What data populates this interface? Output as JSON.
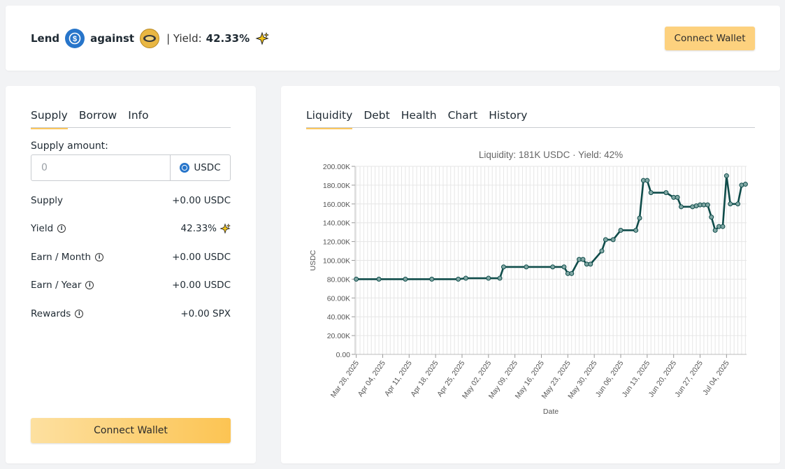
{
  "header": {
    "lend_label": "Lend",
    "against_label": "against",
    "yield_prefix": "| Yield:",
    "yield_value": "42.33%",
    "connect_wallet": "Connect Wallet",
    "coin_a_icon": "usdc-coin-icon",
    "coin_b_icon": "spx-coin-icon",
    "sparkle_icon": "sparkle-icon"
  },
  "left": {
    "tabs": [
      "Supply",
      "Borrow",
      "Info"
    ],
    "active_tab": "Supply",
    "supply_amount_label": "Supply amount:",
    "input_placeholder": "0",
    "input_value": "",
    "input_suffix": "USDC",
    "stats": [
      {
        "label": "Supply",
        "value": "+0.00 USDC",
        "info": false
      },
      {
        "label": "Yield",
        "value": "42.33%",
        "info": true
      },
      {
        "label": "Earn / Month",
        "value": "+0.00 USDC",
        "info": true
      },
      {
        "label": "Earn / Year",
        "value": "+0.00 USDC",
        "info": true
      },
      {
        "label": "Rewards",
        "value": "+0.00 SPX",
        "info": true
      }
    ],
    "connect_wallet": "Connect Wallet"
  },
  "right": {
    "tabs": [
      "Liquidity",
      "Debt",
      "Health",
      "Chart",
      "History"
    ],
    "active_tab": "Liquidity"
  },
  "colors": {
    "accent": "#fcc75e",
    "line": "#0f4c4a",
    "usdc": "#2775ca"
  },
  "chart_data": {
    "type": "line",
    "title": "Liquidity: 181K USDC · Yield: 42%",
    "xlabel": "Date",
    "ylabel": "USDC",
    "ylim": [
      0,
      200000
    ],
    "y_ticks": [
      "0.00",
      "20.00K",
      "40.00K",
      "60.00K",
      "80.00K",
      "100.00K",
      "120.00K",
      "140.00K",
      "160.00K",
      "180.00K",
      "200.00K"
    ],
    "x_ticks": [
      "Mar 28, 2025",
      "Apr 04, 2025",
      "Apr 11, 2025",
      "Apr 18, 2025",
      "Apr 25, 2025",
      "May 02, 2025",
      "May 09, 2025",
      "May 16, 2025",
      "May 23, 2025",
      "May 30, 2025",
      "Jun 06, 2025",
      "Jun 13, 2025",
      "Jun 20, 2025",
      "Jun 27, 2025",
      "Jul 04, 2025"
    ],
    "grid": true,
    "legend": "none",
    "series": [
      {
        "x": [
          "2025-03-28",
          "2025-04-03",
          "2025-04-10",
          "2025-04-17",
          "2025-04-24",
          "2025-04-26",
          "2025-05-02",
          "2025-05-05",
          "2025-05-06",
          "2025-05-12",
          "2025-05-19",
          "2025-05-22",
          "2025-05-23",
          "2025-05-24",
          "2025-05-26",
          "2025-05-27",
          "2025-05-28",
          "2025-05-29",
          "2025-06-01",
          "2025-06-02",
          "2025-06-04",
          "2025-06-06",
          "2025-06-10",
          "2025-06-11",
          "2025-06-12",
          "2025-06-13",
          "2025-06-14",
          "2025-06-18",
          "2025-06-20",
          "2025-06-21",
          "2025-06-22",
          "2025-06-25",
          "2025-06-26",
          "2025-06-27",
          "2025-06-28",
          "2025-06-29",
          "2025-06-30",
          "2025-07-01",
          "2025-07-02",
          "2025-07-03",
          "2025-07-04",
          "2025-07-05",
          "2025-07-07",
          "2025-07-08",
          "2025-07-09"
        ],
        "y": [
          80000,
          80000,
          80000,
          80000,
          80000,
          81000,
          81000,
          81000,
          93000,
          93000,
          93000,
          93000,
          86000,
          86000,
          101000,
          101000,
          96000,
          96000,
          110000,
          122000,
          122000,
          132000,
          132000,
          145000,
          185000,
          185000,
          172000,
          172000,
          167000,
          167000,
          157000,
          157000,
          158000,
          159000,
          159000,
          159000,
          146000,
          132000,
          136000,
          136000,
          190000,
          160000,
          160000,
          180000,
          181000
        ]
      }
    ]
  }
}
